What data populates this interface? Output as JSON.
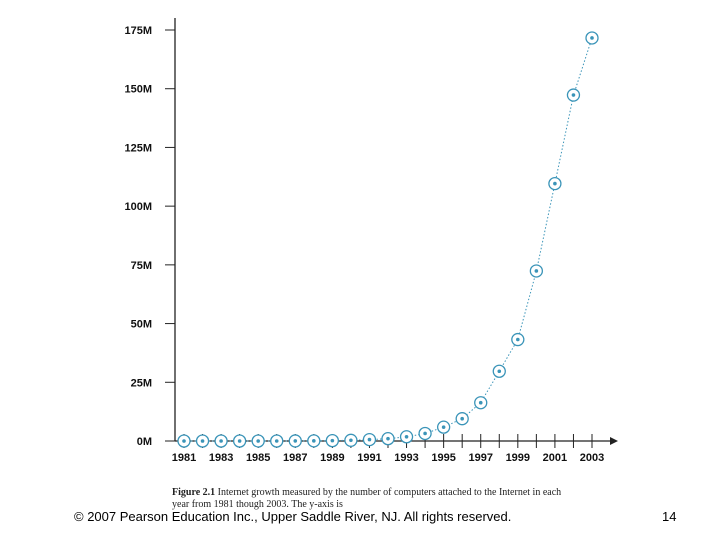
{
  "chart_data": {
    "type": "line",
    "title": "",
    "xlabel": "",
    "ylabel": "",
    "x": [
      1981,
      1982,
      1983,
      1984,
      1985,
      1986,
      1987,
      1988,
      1989,
      1990,
      1991,
      1992,
      1993,
      1994,
      1995,
      1996,
      1997,
      1998,
      1999,
      2000,
      2001,
      2002,
      2003
    ],
    "values": [
      0.0002,
      0.0002,
      0.0006,
      0.001,
      0.002,
      0.005,
      0.03,
      0.06,
      0.16,
      0.3,
      0.6,
      1.0,
      1.8,
      3.2,
      5.9,
      9.5,
      16.3,
      29.7,
      43.2,
      72.4,
      109.6,
      147.3,
      171.6
    ],
    "x_tick_labels": [
      "1981",
      "1983",
      "1985",
      "1987",
      "1989",
      "1991",
      "1993",
      "1995",
      "1997",
      "1999",
      "2001",
      "2003"
    ],
    "y_tick_labels": [
      "0M",
      "25M",
      "50M",
      "75M",
      "100M",
      "125M",
      "150M",
      "175M"
    ],
    "y_ticks": [
      0,
      25,
      50,
      75,
      100,
      125,
      150,
      175
    ],
    "xlim": [
      1981,
      2003
    ],
    "ylim": [
      0,
      175
    ],
    "grid": false,
    "marker_color": "#3a94b8"
  },
  "caption": {
    "label": "Figure 2.1",
    "text": "Internet growth measured by the number of computers attached to the Internet in each year from 1981 though 2003. The y-axis is"
  },
  "footer": {
    "copyright": "© 2007 Pearson Education Inc., Upper Saddle River, NJ. All rights reserved.",
    "page_number": "14"
  }
}
